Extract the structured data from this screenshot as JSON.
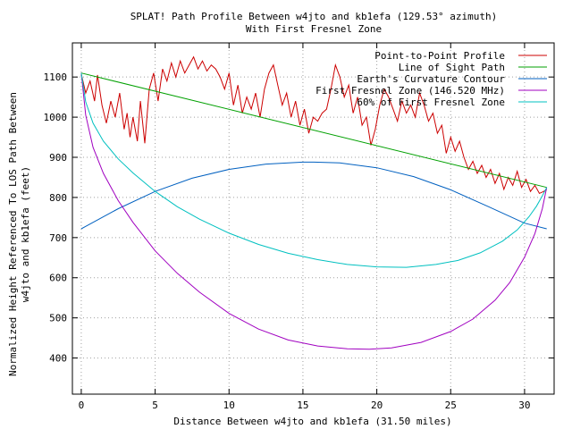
{
  "chart_data": {
    "type": "line",
    "title": "SPLAT! Path Profile Between w4jto and kb1efa (129.53° azimuth)",
    "subtitle": "With First Fresnel Zone",
    "xlabel": "Distance Between w4jto and kb1efa (31.50 miles)",
    "ylabel": [
      "Normalized Height Referenced To LOS Path Between",
      "w4jto and kb1efa (feet)"
    ],
    "xlim": [
      -0.6,
      32.0
    ],
    "ylim": [
      310,
      1185
    ],
    "xticks": [
      0,
      5,
      10,
      15,
      20,
      25,
      30
    ],
    "yticks": [
      400,
      500,
      600,
      700,
      800,
      900,
      1000,
      1100
    ],
    "grid": true,
    "legend_position": "top-right",
    "series": [
      {
        "name": "Point-to-Point Profile",
        "color": "#cc0000",
        "x": [
          0,
          0.3,
          0.6,
          0.9,
          1.1,
          1.4,
          1.7,
          2.0,
          2.3,
          2.6,
          2.9,
          3.1,
          3.3,
          3.5,
          3.8,
          4.0,
          4.3,
          4.6,
          4.9,
          5.2,
          5.5,
          5.8,
          6.1,
          6.4,
          6.7,
          7.0,
          7.3,
          7.6,
          7.9,
          8.2,
          8.5,
          8.8,
          9.1,
          9.4,
          9.7,
          10.0,
          10.3,
          10.6,
          10.9,
          11.2,
          11.5,
          11.8,
          12.1,
          12.4,
          12.7,
          13.0,
          13.3,
          13.6,
          13.9,
          14.2,
          14.5,
          14.8,
          15.1,
          15.4,
          15.7,
          16.0,
          16.3,
          16.6,
          16.9,
          17.2,
          17.5,
          17.8,
          18.1,
          18.4,
          18.7,
          19.0,
          19.3,
          19.6,
          19.9,
          20.2,
          20.5,
          20.8,
          21.1,
          21.4,
          21.7,
          22.0,
          22.3,
          22.6,
          22.9,
          23.2,
          23.5,
          23.8,
          24.1,
          24.4,
          24.7,
          25.0,
          25.3,
          25.6,
          25.9,
          26.2,
          26.5,
          26.8,
          27.1,
          27.4,
          27.7,
          28.0,
          28.3,
          28.6,
          28.9,
          29.2,
          29.5,
          29.8,
          30.1,
          30.4,
          30.7,
          31.0,
          31.3,
          31.5
        ],
        "y": [
          1108,
          1060,
          1090,
          1040,
          1105,
          1030,
          985,
          1040,
          1000,
          1060,
          970,
          1010,
          950,
          1000,
          940,
          1040,
          935,
          1070,
          1110,
          1040,
          1120,
          1090,
          1135,
          1100,
          1140,
          1110,
          1130,
          1150,
          1120,
          1140,
          1115,
          1130,
          1120,
          1100,
          1070,
          1110,
          1030,
          1080,
          1010,
          1050,
          1020,
          1060,
          1000,
          1070,
          1110,
          1130,
          1080,
          1030,
          1060,
          1000,
          1040,
          980,
          1020,
          960,
          1000,
          990,
          1010,
          1020,
          1070,
          1130,
          1100,
          1050,
          1080,
          1010,
          1050,
          980,
          1000,
          930,
          970,
          1030,
          1070,
          1050,
          1020,
          990,
          1040,
          1010,
          1030,
          1000,
          1060,
          1030,
          990,
          1010,
          960,
          980,
          910,
          950,
          915,
          940,
          900,
          870,
          890,
          860,
          880,
          850,
          870,
          835,
          860,
          820,
          850,
          830,
          865,
          825,
          845,
          815,
          830,
          810,
          815,
          820
        ]
      },
      {
        "name": "Line of Sight Path",
        "color": "#00a000",
        "x": [
          0,
          31.5
        ],
        "y": [
          1110,
          825
        ]
      },
      {
        "name": "Earth's Curvature Contour",
        "color": "#0060c0",
        "x": [
          0,
          2.5,
          5.0,
          7.5,
          10.0,
          12.5,
          15.0,
          15.75,
          17.5,
          20.0,
          22.5,
          25.0,
          27.5,
          30.0,
          31.5
        ],
        "y": [
          722,
          772,
          815,
          848,
          870,
          883,
          888,
          888,
          886,
          874,
          852,
          819,
          778,
          736,
          722
        ]
      },
      {
        "name": "First Fresnel Zone (146.520 MHz)",
        "color": "#a000c0",
        "x": [
          0,
          0.3,
          0.8,
          1.5,
          2.5,
          3.5,
          5.0,
          6.5,
          8.0,
          10.0,
          12.0,
          14.0,
          16.0,
          18.0,
          19.5,
          21.0,
          23.0,
          25.0,
          26.5,
          28.0,
          29.0,
          30.0,
          30.7,
          31.2,
          31.5
        ],
        "y": [
          1110,
          1005,
          925,
          860,
          792,
          738,
          667,
          611,
          564,
          511,
          472,
          445,
          430,
          423,
          422,
          425,
          439,
          466,
          497,
          544,
          588,
          651,
          710,
          772,
          825
        ]
      },
      {
        "name": "60% of First Fresnel Zone",
        "color": "#00c0c0",
        "x": [
          0,
          0.3,
          0.8,
          1.5,
          2.5,
          3.5,
          5.0,
          6.5,
          8.0,
          10.0,
          12.0,
          14.0,
          16.0,
          18.0,
          20.0,
          22.0,
          24.0,
          25.5,
          27.0,
          28.5,
          29.5,
          30.3,
          30.8,
          31.2,
          31.5
        ],
        "y": [
          1110,
          1038,
          985,
          940,
          896,
          861,
          815,
          777,
          746,
          711,
          683,
          661,
          645,
          633,
          627,
          626,
          633,
          643,
          662,
          691,
          719,
          752,
          778,
          804,
          825
        ]
      }
    ]
  }
}
